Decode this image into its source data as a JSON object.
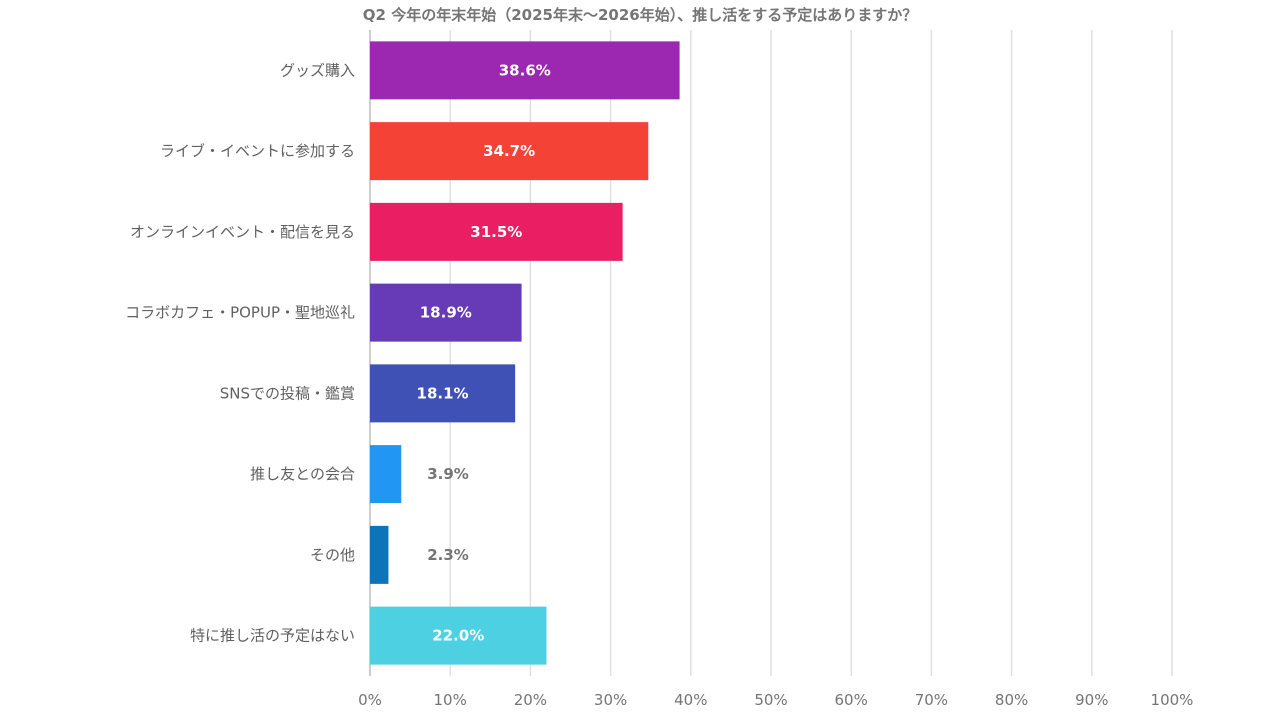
{
  "chart_data": {
    "type": "bar",
    "orientation": "horizontal",
    "title": "Q2 今年の年末年始（2025年末～2026年始）、推し活をする予定はありますか？",
    "categories": [
      "グッズ購入",
      "ライブ・イベントに参加する",
      "オンラインイベント・配信を見る",
      "コラボカフェ・POPUP・聖地巡礼",
      "SNSでの投稿・鑑賞",
      "推し友との会合",
      "その他",
      "特に推し活の予定はない"
    ],
    "values": [
      38.6,
      34.7,
      31.5,
      18.9,
      18.1,
      3.9,
      2.3,
      22.0
    ],
    "value_labels": [
      "38.6%",
      "34.7%",
      "31.5%",
      "18.9%",
      "18.1%",
      "3.9%",
      "2.3%",
      "22.0%"
    ],
    "colors": [
      "#9C27B0",
      "#F44336",
      "#E91E63",
      "#673AB7",
      "#3F51B5",
      "#2196F3",
      "#0D74B9",
      "#4DD0E1"
    ],
    "xlim": [
      0,
      100
    ],
    "xticks": [
      "0%",
      "10%",
      "20%",
      "30%",
      "40%",
      "50%",
      "60%",
      "70%",
      "80%",
      "90%",
      "100%"
    ],
    "xlabel": "",
    "ylabel": "",
    "grid": true,
    "legend": "none"
  }
}
